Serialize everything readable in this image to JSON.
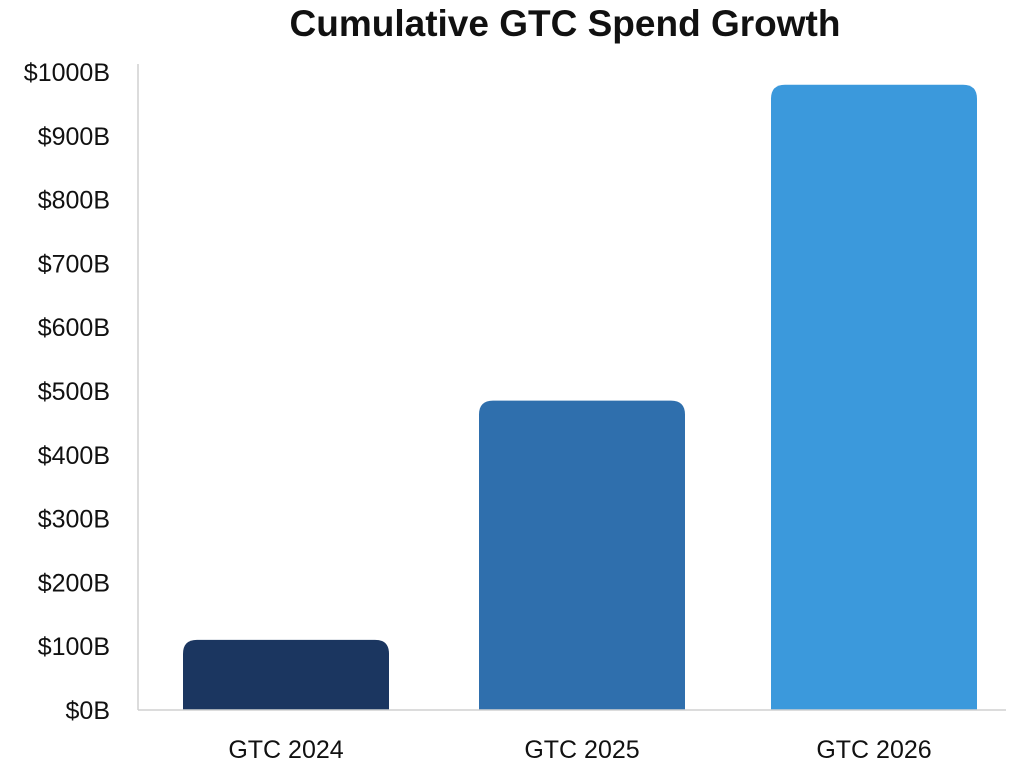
{
  "chart_data": {
    "type": "bar",
    "title": "Cumulative GTC Spend Growth",
    "xlabel": "",
    "ylabel": "",
    "categories": [
      "GTC 2024",
      "GTC 2025",
      "GTC 2026"
    ],
    "values": [
      110,
      485,
      980
    ],
    "unit": "$B",
    "ylim": [
      0,
      1000
    ],
    "yticks": [
      0,
      100,
      200,
      300,
      400,
      500,
      600,
      700,
      800,
      900,
      1000
    ],
    "ytick_labels": [
      "$0B",
      "$100B",
      "$200B",
      "$300B",
      "$400B",
      "$500B",
      "$600B",
      "$700B",
      "$800B",
      "$900B",
      "$1000B"
    ],
    "bar_colors": [
      "#1b3660",
      "#2f6fad",
      "#3b99dc"
    ],
    "grid": false,
    "legend": "none"
  }
}
